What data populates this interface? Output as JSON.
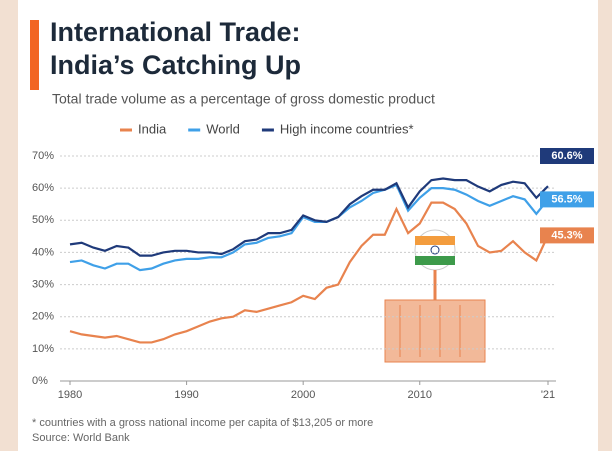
{
  "chart_data": {
    "type": "line",
    "title_line1": "International Trade:",
    "title_line2": "India’s Catching Up",
    "subtitle": "Total trade volume as a percentage of gross domestic product",
    "footnote": "* countries with a gross national income per capita of $13,205 or more",
    "source": "Source: World Bank",
    "x": [
      1980,
      1981,
      1982,
      1983,
      1984,
      1985,
      1986,
      1987,
      1988,
      1989,
      1990,
      1991,
      1992,
      1993,
      1994,
      1995,
      1996,
      1997,
      1998,
      1999,
      2000,
      2001,
      2002,
      2003,
      2004,
      2005,
      2006,
      2007,
      2008,
      2009,
      2010,
      2011,
      2012,
      2013,
      2014,
      2015,
      2016,
      2017,
      2018,
      2019,
      2020,
      2021
    ],
    "series": [
      {
        "name": "India",
        "color": "#e8834e",
        "values": [
          15.5,
          14.5,
          14,
          13.5,
          14,
          13,
          12,
          12,
          13,
          14.5,
          15.5,
          17,
          18.5,
          19.5,
          20,
          22,
          21.5,
          22.5,
          23.5,
          24.5,
          26.5,
          25.5,
          29,
          30,
          37,
          42,
          45.5,
          45.5,
          53.5,
          46,
          49,
          55.5,
          55.5,
          53.5,
          49,
          42,
          40,
          40.5,
          43.5,
          40,
          37.5,
          45.3
        ],
        "value_labels": [
          null,
          null,
          null,
          null,
          null,
          null,
          null,
          null,
          null,
          null,
          null,
          null,
          null,
          null,
          null,
          null,
          null,
          null,
          null,
          null,
          null,
          null,
          null,
          null,
          null,
          null,
          null,
          null,
          null,
          null,
          null,
          null,
          null,
          null,
          null,
          null,
          null,
          null,
          null,
          null,
          null,
          "45.3%"
        ]
      },
      {
        "name": "World",
        "color": "#3fa0e8",
        "values": [
          37,
          37.5,
          36,
          35,
          36.5,
          36.5,
          34.5,
          35,
          36.5,
          37.5,
          38,
          38,
          38.5,
          38.5,
          40,
          42.5,
          43,
          44.5,
          45,
          46,
          51,
          49.5,
          49.5,
          51,
          54,
          56,
          58.5,
          59.5,
          61,
          53,
          57,
          60,
          60,
          59.5,
          58,
          56,
          54.5,
          56,
          57.5,
          56.5,
          52,
          56.5
        ],
        "value_labels": [
          null,
          null,
          null,
          null,
          null,
          null,
          null,
          null,
          null,
          null,
          null,
          null,
          null,
          null,
          null,
          null,
          null,
          null,
          null,
          null,
          null,
          null,
          null,
          null,
          null,
          null,
          null,
          null,
          null,
          null,
          null,
          null,
          null,
          null,
          null,
          null,
          null,
          null,
          null,
          null,
          null,
          "56.5%"
        ]
      },
      {
        "name": "High income countries*",
        "color": "#1f3a7a",
        "values": [
          42.5,
          43,
          41.5,
          40.5,
          42,
          41.5,
          39,
          39,
          40,
          40.5,
          40.5,
          40,
          40,
          39.5,
          41,
          43.5,
          44,
          46,
          46,
          47,
          51.5,
          50,
          49.5,
          51,
          55,
          57.5,
          59.5,
          59.5,
          61.5,
          54,
          59,
          62.5,
          63,
          62.5,
          62.5,
          60.5,
          59,
          61,
          62,
          61.5,
          57,
          60.6
        ],
        "value_labels": [
          null,
          null,
          null,
          null,
          null,
          null,
          null,
          null,
          null,
          null,
          null,
          null,
          null,
          null,
          null,
          null,
          null,
          null,
          null,
          null,
          null,
          null,
          null,
          null,
          null,
          null,
          null,
          null,
          null,
          null,
          null,
          null,
          null,
          null,
          null,
          null,
          null,
          null,
          null,
          null,
          null,
          "60.6%"
        ]
      }
    ],
    "xlim": [
      1980,
      2021
    ],
    "xticks": [
      1980,
      1990,
      2000,
      2010,
      {
        "value": 2021,
        "label": "'21"
      }
    ],
    "ylim": [
      0,
      70
    ],
    "yticks": [
      {
        "value": 0,
        "label": "0%"
      },
      {
        "value": 10,
        "label": "10%"
      },
      {
        "value": 20,
        "label": "20%"
      },
      {
        "value": 30,
        "label": "30%"
      },
      {
        "value": 40,
        "label": "40%"
      },
      {
        "value": 50,
        "label": "50%"
      },
      {
        "value": 60,
        "label": "60%"
      },
      {
        "value": 70,
        "label": "70%"
      }
    ],
    "grid": true
  }
}
